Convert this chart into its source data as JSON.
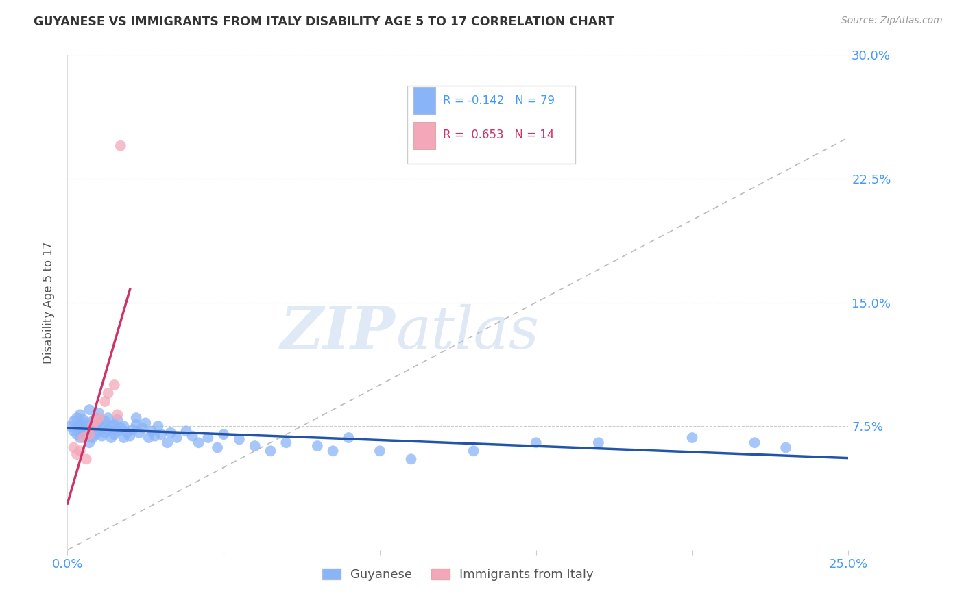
{
  "title": "GUYANESE VS IMMIGRANTS FROM ITALY DISABILITY AGE 5 TO 17 CORRELATION CHART",
  "source": "Source: ZipAtlas.com",
  "ylabel": "Disability Age 5 to 17",
  "x_min": 0.0,
  "x_max": 0.25,
  "y_min": 0.0,
  "y_max": 0.3,
  "y_ticks": [
    0.075,
    0.15,
    0.225,
    0.3
  ],
  "y_tick_labels": [
    "7.5%",
    "15.0%",
    "22.5%",
    "30.0%"
  ],
  "guyanese_color": "#8ab4f8",
  "italy_color": "#f4a7b9",
  "guyanese_line_color": "#2255aa",
  "italy_line_color": "#cc3366",
  "legend_label1": "Guyanese",
  "legend_label2": "Immigrants from Italy",
  "watermark_zip": "ZIP",
  "watermark_atlas": "atlas",
  "title_color": "#333333",
  "axis_color": "#4499ff",
  "background_color": "#ffffff",
  "grid_color": "#cccccc",
  "ref_line_color": "#bbbbbb",
  "guyanese_x": [
    0.001,
    0.002,
    0.002,
    0.003,
    0.003,
    0.003,
    0.004,
    0.004,
    0.004,
    0.005,
    0.005,
    0.005,
    0.006,
    0.006,
    0.006,
    0.007,
    0.007,
    0.007,
    0.008,
    0.008,
    0.008,
    0.009,
    0.009,
    0.009,
    0.01,
    0.01,
    0.01,
    0.011,
    0.011,
    0.012,
    0.012,
    0.013,
    0.013,
    0.014,
    0.014,
    0.015,
    0.015,
    0.016,
    0.016,
    0.017,
    0.018,
    0.018,
    0.019,
    0.02,
    0.021,
    0.022,
    0.022,
    0.023,
    0.024,
    0.025,
    0.026,
    0.027,
    0.028,
    0.029,
    0.03,
    0.032,
    0.033,
    0.035,
    0.038,
    0.04,
    0.042,
    0.045,
    0.048,
    0.05,
    0.055,
    0.06,
    0.065,
    0.07,
    0.08,
    0.085,
    0.09,
    0.1,
    0.11,
    0.13,
    0.15,
    0.17,
    0.2,
    0.22,
    0.23
  ],
  "guyanese_y": [
    0.075,
    0.072,
    0.078,
    0.07,
    0.074,
    0.08,
    0.068,
    0.076,
    0.082,
    0.071,
    0.075,
    0.079,
    0.069,
    0.073,
    0.077,
    0.065,
    0.071,
    0.085,
    0.068,
    0.074,
    0.078,
    0.07,
    0.076,
    0.08,
    0.072,
    0.077,
    0.083,
    0.069,
    0.075,
    0.071,
    0.078,
    0.073,
    0.08,
    0.068,
    0.075,
    0.07,
    0.076,
    0.072,
    0.079,
    0.074,
    0.068,
    0.075,
    0.071,
    0.069,
    0.073,
    0.076,
    0.08,
    0.071,
    0.074,
    0.077,
    0.068,
    0.072,
    0.069,
    0.075,
    0.07,
    0.065,
    0.071,
    0.068,
    0.072,
    0.069,
    0.065,
    0.068,
    0.062,
    0.07,
    0.067,
    0.063,
    0.06,
    0.065,
    0.063,
    0.06,
    0.068,
    0.06,
    0.055,
    0.06,
    0.065,
    0.065,
    0.068,
    0.065,
    0.062
  ],
  "italy_x": [
    0.002,
    0.003,
    0.004,
    0.005,
    0.006,
    0.007,
    0.008,
    0.009,
    0.01,
    0.012,
    0.013,
    0.015,
    0.016,
    0.017
  ],
  "italy_y": [
    0.062,
    0.058,
    0.06,
    0.068,
    0.055,
    0.07,
    0.075,
    0.078,
    0.08,
    0.09,
    0.095,
    0.1,
    0.082,
    0.245
  ],
  "italy_line_x_start": 0.0,
  "italy_line_x_end": 0.02,
  "blue_line_x_start": 0.0,
  "blue_line_x_end": 0.25
}
